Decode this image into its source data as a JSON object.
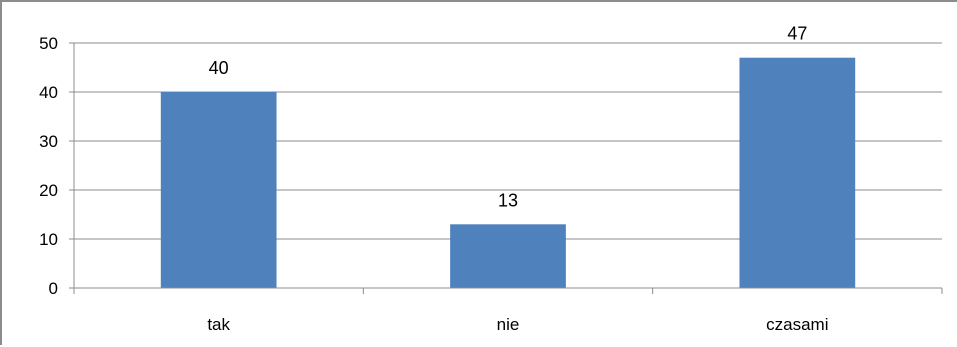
{
  "chart_data": {
    "type": "bar",
    "categories": [
      "tak",
      "nie",
      "czasami"
    ],
    "values": [
      40,
      13,
      47
    ],
    "data_labels": [
      "40",
      "13",
      "47"
    ],
    "y_ticks": [
      "0",
      "10",
      "20",
      "30",
      "40",
      "50"
    ],
    "ylim": [
      0,
      50
    ],
    "y_tick_step": 10,
    "grid": true,
    "legend": false,
    "colors": {
      "bar": "#4f81bd",
      "grid": "#8c8c8c",
      "axis": "#8c8c8c"
    }
  }
}
